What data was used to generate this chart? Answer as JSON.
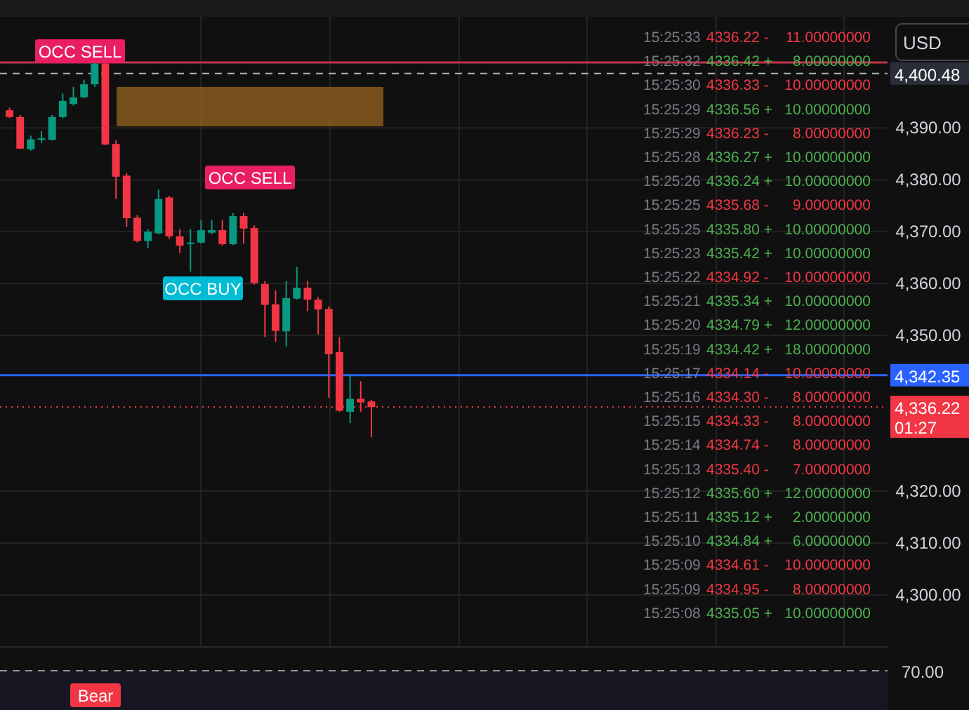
{
  "chart_data": {
    "type": "candlestick",
    "categories": [
      null,
      null,
      null,
      null,
      null,
      null,
      null,
      null,
      null,
      null,
      null,
      null,
      null,
      null,
      null,
      null,
      null,
      null,
      null,
      null,
      null,
      null,
      null,
      null,
      null,
      null,
      null,
      null,
      null,
      null,
      null,
      null,
      null,
      null,
      null,
      null,
      null,
      null,
      null,
      null,
      null,
      null,
      null,
      null,
      null,
      null,
      null,
      null,
      null,
      null,
      null,
      null,
      null,
      null,
      null,
      null,
      null,
      null,
      null,
      null,
      null,
      null,
      null,
      null,
      null,
      null,
      null,
      null,
      null,
      null,
      null,
      null,
      null,
      null,
      null,
      null,
      null,
      null,
      null,
      null,
      null,
      null,
      null
    ],
    "ohlc": [
      [
        4393.4,
        4393.9,
        4391.9,
        4392.1
      ],
      [
        4392.1,
        4392.5,
        4385.9,
        4386.0
      ],
      [
        4385.9,
        4388.5,
        4385.6,
        4387.8
      ],
      [
        4387.7,
        4389.4,
        4387.1,
        4388.0
      ],
      [
        4387.7,
        4392.5,
        4387.6,
        4392.1
      ],
      [
        4392.1,
        4396.6,
        4391.9,
        4395.2
      ],
      [
        4394.6,
        4397.9,
        4394.3,
        4395.9
      ],
      [
        4395.9,
        4399.3,
        4395.7,
        4398.4
      ],
      [
        4398.4,
        4402.9,
        4397.9,
        4402.4
      ],
      [
        4402.4,
        4402.9,
        4386.7,
        4386.8
      ],
      [
        4386.9,
        4387.6,
        4376.3,
        4380.6
      ],
      [
        4380.8,
        4381.3,
        4370.9,
        4372.6
      ],
      [
        4372.7,
        4373.2,
        4367.9,
        4368.2
      ],
      [
        4368.2,
        4370.5,
        4366.8,
        4370.0
      ],
      [
        4369.7,
        4378.1,
        4369.5,
        4376.3
      ],
      [
        4376.6,
        4376.9,
        4368.6,
        4369.1
      ],
      [
        4369.1,
        4370.5,
        4365.9,
        4367.3
      ],
      [
        4367.7,
        4370.5,
        4362.3,
        4367.9
      ],
      [
        4367.9,
        4372.3,
        4367.7,
        4370.3
      ],
      [
        4369.8,
        4372.3,
        4369.5,
        4370.3
      ],
      [
        4370.3,
        4372.3,
        4367.3,
        4367.6
      ],
      [
        4367.6,
        4373.6,
        4367.4,
        4373.0
      ],
      [
        4373.0,
        4373.6,
        4367.7,
        4370.6
      ],
      [
        4370.7,
        4371.2,
        4359.8,
        4360.1
      ],
      [
        4359.9,
        4360.5,
        4349.7,
        4355.9
      ],
      [
        4356.0,
        4358.7,
        4348.8,
        4350.9
      ],
      [
        4350.8,
        4360.5,
        4347.9,
        4357.2
      ],
      [
        4357.1,
        4363.2,
        4356.9,
        4359.2
      ],
      [
        4359.2,
        4360.5,
        4354.7,
        4356.9
      ],
      [
        4356.9,
        4357.4,
        4350.2,
        4355.0
      ],
      [
        4355.1,
        4355.6,
        4338.0,
        4346.4
      ],
      [
        4346.8,
        4349.7,
        4335.3,
        4335.5
      ],
      [
        4335.3,
        4342.5,
        4333.1,
        4337.8
      ],
      [
        4337.8,
        4341.2,
        4335.3,
        4337.1
      ],
      [
        4337.3,
        4337.6,
        4330.4,
        4336.2
      ],
      null,
      null,
      null,
      null,
      null,
      null,
      null,
      null,
      null,
      null,
      null,
      null,
      null,
      null,
      null,
      null,
      null,
      null,
      null,
      null,
      null,
      null,
      null,
      null,
      null,
      null,
      null,
      null,
      null,
      null,
      null,
      null,
      null,
      null,
      null,
      null,
      null,
      null,
      null,
      null,
      null,
      null,
      null,
      null,
      null,
      null,
      null,
      null
    ],
    "colors": [
      "#f23645",
      "#f23645",
      "#089981",
      "#089981",
      "#089981",
      "#089981",
      "#089981",
      "#089981",
      "#089981",
      "#f23645",
      "#f23645",
      "#f23645",
      "#f23645",
      "#089981",
      "#089981",
      "#f23645",
      "#f23645",
      "#089981",
      "#089981",
      "#089981",
      "#f23645",
      "#089981",
      "#f23645",
      "#f23645",
      "#f23645",
      "#f23645",
      "#089981",
      "#089981",
      "#f23645",
      "#f23645",
      "#f23645",
      "#f23645",
      "#089981",
      "#f23645",
      "#f23645",
      null,
      null,
      null,
      null,
      null,
      null,
      null,
      null,
      null,
      null,
      null,
      null,
      null,
      null,
      null,
      null,
      null,
      null,
      null,
      null,
      null,
      null,
      null,
      null,
      null,
      null,
      null,
      null,
      null,
      null,
      null,
      null,
      null,
      null,
      null,
      null,
      null,
      null,
      null,
      null,
      null,
      null,
      null,
      null,
      null,
      null,
      null,
      null
    ],
    "ylim": [
      4290,
      4411.4
    ],
    "yticks": [
      {
        "value": 4300,
        "label": "4,300.00"
      },
      {
        "value": 4310,
        "label": "4,310.00"
      },
      {
        "value": 4320,
        "label": "4,320.00"
      },
      {
        "value": 4350,
        "label": "4,350.00"
      },
      {
        "value": 4360,
        "label": "4,360.00"
      },
      {
        "value": 4370,
        "label": "4,370.00"
      },
      {
        "value": 4380,
        "label": "4,380.00"
      },
      {
        "value": 4390,
        "label": "4,390.00"
      }
    ],
    "grid": true,
    "ref_lines": [
      {
        "axis": "y",
        "value": 4400.48,
        "label": "4,400.48",
        "color": "#b2b5be",
        "line_style": "dashed"
      },
      {
        "axis": "y",
        "value": 4342.35,
        "label": "4,342.35",
        "color": "#2962ff",
        "line_style": "solid"
      },
      {
        "axis": "y",
        "value": 4336.22,
        "label": "4,336.22",
        "color": "#f23645",
        "line_style": "dotted"
      },
      {
        "axis": "y",
        "value": 4402.6,
        "label": null,
        "color": "#c2344a",
        "line_style": "solid"
      }
    ],
    "bands": [
      {
        "axis": "y",
        "from": 4390.3,
        "to": 4397.9,
        "label": null,
        "color": "#8a5a1e"
      }
    ],
    "annotations": [
      "OCC SELL",
      "OCC SELL",
      "OCC BUY",
      "Bear",
      "USD",
      "01:27",
      "70.00",
      "15:25:33 4336.22 - 11.00000000",
      "15:25:32 4336.42 + 8.00000000",
      "15:25:30 4336.33 - 10.00000000",
      "15:25:29 4336.56 + 10.00000000",
      "15:25:29 4336.23 - 8.00000000",
      "15:25:28 4336.27 + 10.00000000",
      "15:25:26 4336.24 + 10.00000000",
      "15:25:25 4335.68 - 9.00000000",
      "15:25:25 4335.80 + 10.00000000",
      "15:25:23 4335.42 + 10.00000000",
      "15:25:22 4334.92 - 10.00000000",
      "15:25:21 4335.34 + 10.00000000",
      "15:25:20 4334.79 + 12.00000000",
      "15:25:19 4334.42 + 18.00000000",
      "15:25:17 4334.14 - 10.00000000",
      "15:25:16 4334.30 - 8.00000000",
      "15:25:15 4334.33 - 8.00000000",
      "15:25:14 4334.74 - 8.00000000",
      "15:25:13 4335.40 - 7.00000000",
      "15:25:12 4335.60 + 12.00000000",
      "15:25:11 4335.12 + 2.00000000",
      "15:25:10 4334.84 + 6.00000000",
      "15:25:09 4334.61 - 10.00000000",
      "15:25:09 4334.95 - 8.00000000",
      "15:25:08 4335.05 + 10.00000000"
    ]
  }
}
